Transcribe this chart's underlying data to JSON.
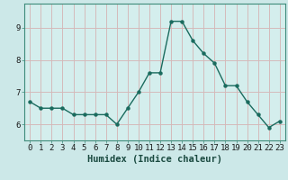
{
  "x": [
    0,
    1,
    2,
    3,
    4,
    5,
    6,
    7,
    8,
    9,
    10,
    11,
    12,
    13,
    14,
    15,
    16,
    17,
    18,
    19,
    20,
    21,
    22,
    23
  ],
  "y": [
    6.7,
    6.5,
    6.5,
    6.5,
    6.3,
    6.3,
    6.3,
    6.3,
    6.0,
    6.5,
    7.0,
    7.6,
    7.6,
    9.2,
    9.2,
    8.6,
    8.2,
    7.9,
    7.2,
    7.2,
    6.7,
    6.3,
    5.9,
    6.1
  ],
  "xlabel": "Humidex (Indice chaleur)",
  "ylim": [
    5.5,
    9.75
  ],
  "xlim": [
    -0.5,
    23.5
  ],
  "bg_color": "#cce8e8",
  "plot_bg_color": "#d4eeed",
  "line_color": "#1a6b5e",
  "grid_color": "#b8d8d8",
  "grid_color_red": "#d4b8b8",
  "xlabel_fontsize": 7.5,
  "tick_fontsize": 6.5,
  "yticks": [
    6,
    7,
    8,
    9
  ],
  "xticks": [
    0,
    1,
    2,
    3,
    4,
    5,
    6,
    7,
    8,
    9,
    10,
    11,
    12,
    13,
    14,
    15,
    16,
    17,
    18,
    19,
    20,
    21,
    22,
    23
  ],
  "bottom_bar_color": "#3d8b7a",
  "bottom_bar_text_color": "#e0f4f0"
}
